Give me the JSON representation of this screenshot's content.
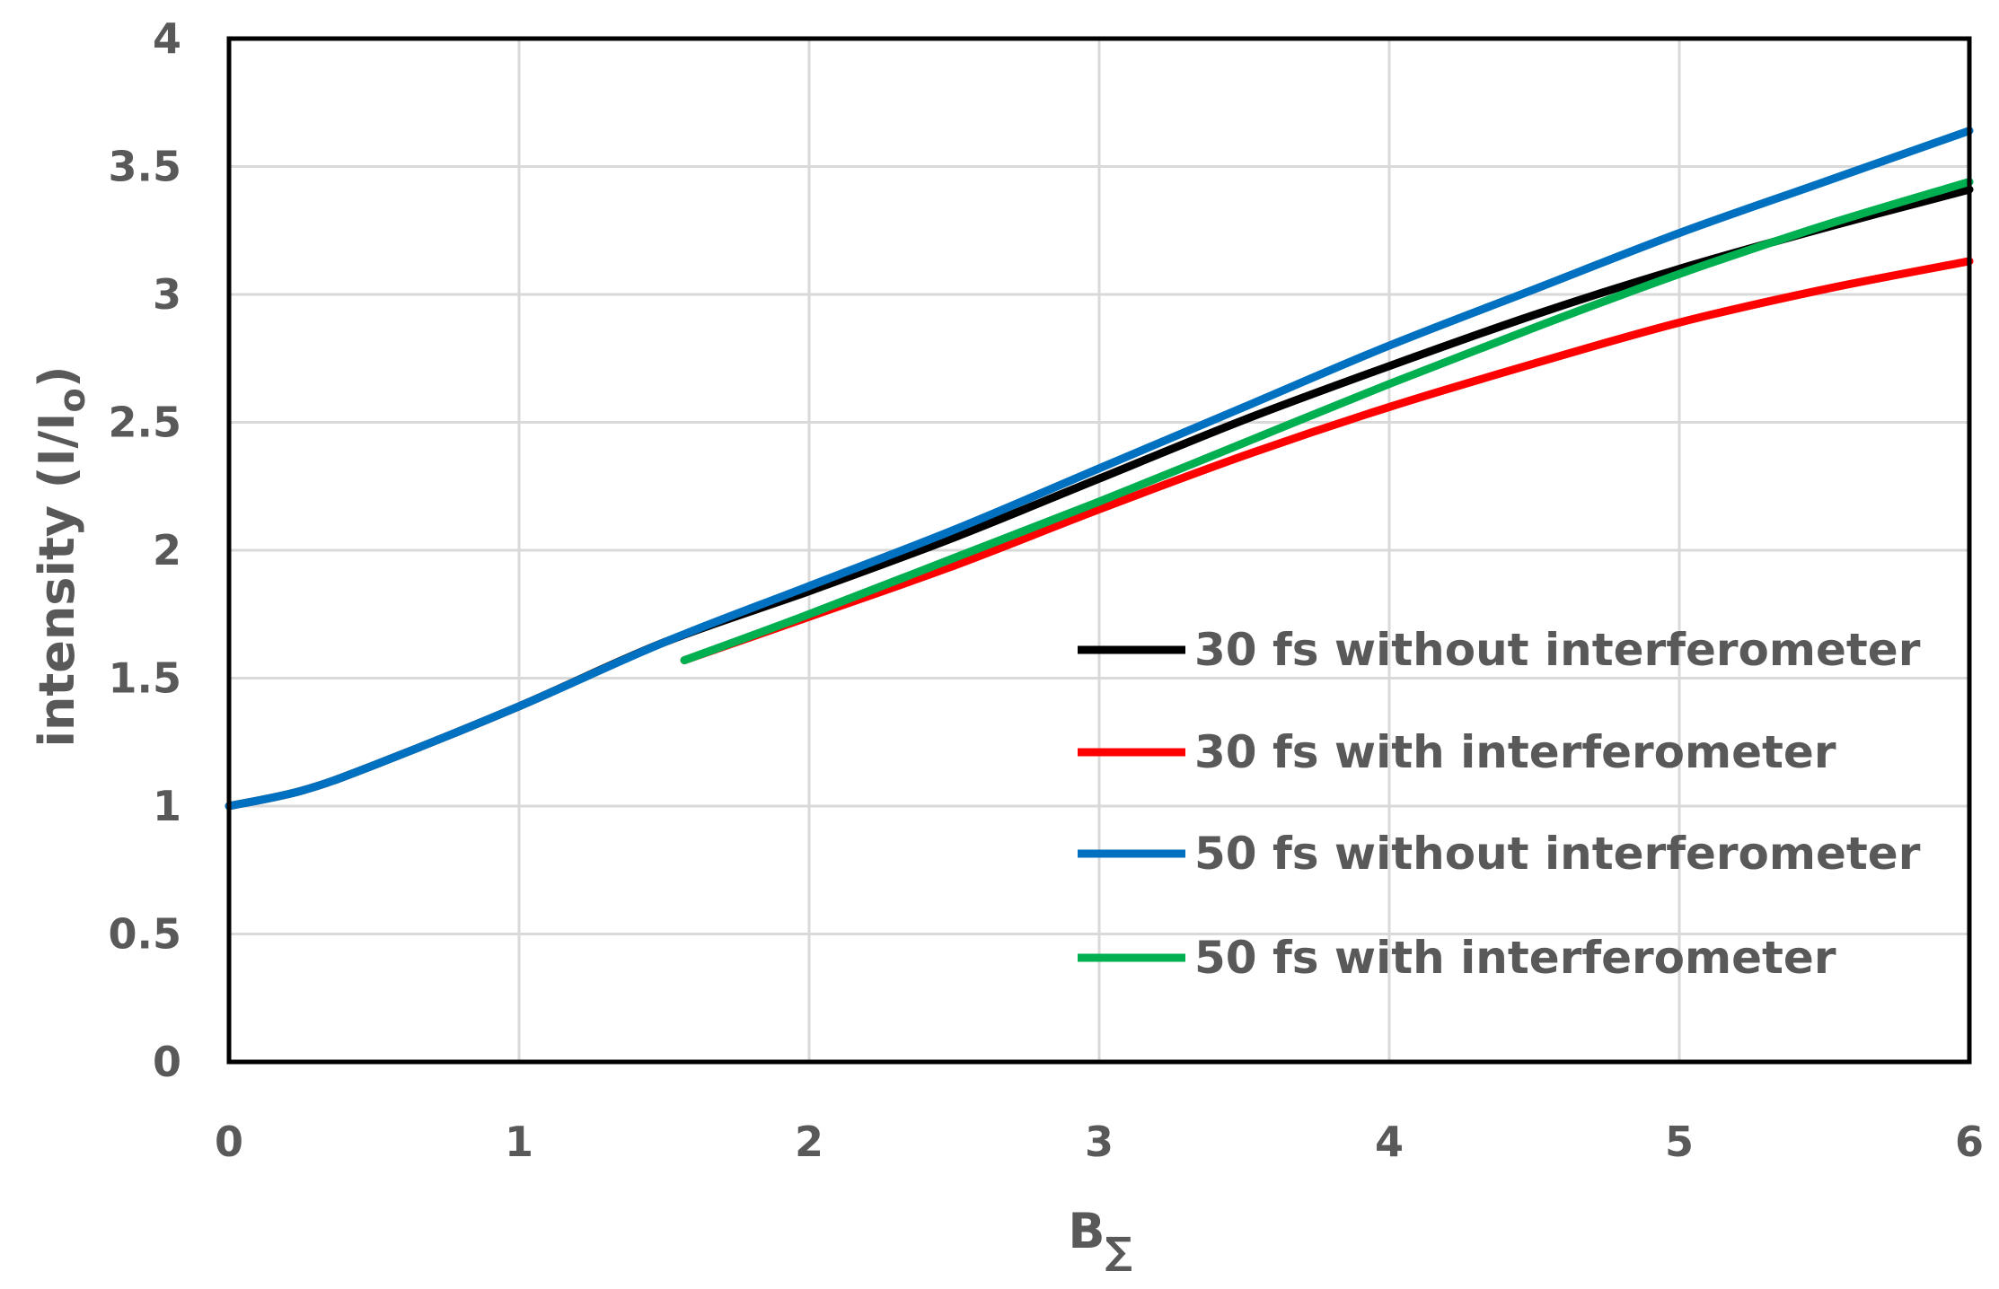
{
  "chart_data": {
    "type": "line",
    "title": "",
    "xlabel_main": "B",
    "xlabel_sub": "∑",
    "ylabel_main": "intensity (I/I",
    "ylabel_sub": "o",
    "ylabel_end": ")",
    "xlim": [
      0,
      6
    ],
    "ylim": [
      0,
      4
    ],
    "x_ticks": [
      "0",
      "1",
      "2",
      "3",
      "4",
      "5",
      "6"
    ],
    "y_ticks": [
      "0",
      "0.5",
      "1",
      "1.5",
      "2",
      "2.5",
      "3",
      "3.5",
      "4"
    ],
    "grid": true,
    "legend_position": "inside-right",
    "series": [
      {
        "name": "30 fs without interferometer",
        "color": "#000000",
        "x": [
          0,
          0.25,
          0.5,
          1.0,
          1.5,
          2.0,
          2.5,
          3.0,
          3.5,
          4.0,
          4.5,
          5.0,
          5.5,
          6.0
        ],
        "y": [
          1.0,
          1.06,
          1.16,
          1.39,
          1.64,
          1.84,
          2.05,
          2.28,
          2.51,
          2.72,
          2.92,
          3.1,
          3.26,
          3.41
        ]
      },
      {
        "name": "30 fs with interferometer",
        "color": "#ff0000",
        "x": [
          1.57,
          2.0,
          2.5,
          3.0,
          3.5,
          4.0,
          4.5,
          5.0,
          5.5,
          6.0
        ],
        "y": [
          1.57,
          1.74,
          1.94,
          2.16,
          2.37,
          2.56,
          2.73,
          2.89,
          3.02,
          3.13
        ]
      },
      {
        "name": "50 fs without interferometer",
        "color": "#0070c0",
        "x": [
          0,
          0.25,
          0.5,
          1.0,
          1.5,
          2.0,
          2.5,
          3.0,
          3.5,
          4.0,
          4.5,
          5.0,
          5.5,
          6.0
        ],
        "y": [
          1.0,
          1.06,
          1.16,
          1.39,
          1.64,
          1.86,
          2.08,
          2.32,
          2.56,
          2.8,
          3.02,
          3.24,
          3.44,
          3.64
        ]
      },
      {
        "name": "50 fs with interferometer",
        "color": "#00b050",
        "x": [
          1.57,
          2.0,
          2.5,
          3.0,
          3.5,
          4.0,
          4.5,
          5.0,
          5.5,
          6.0
        ],
        "y": [
          1.57,
          1.75,
          1.97,
          2.19,
          2.42,
          2.65,
          2.87,
          3.08,
          3.27,
          3.44
        ]
      }
    ]
  }
}
